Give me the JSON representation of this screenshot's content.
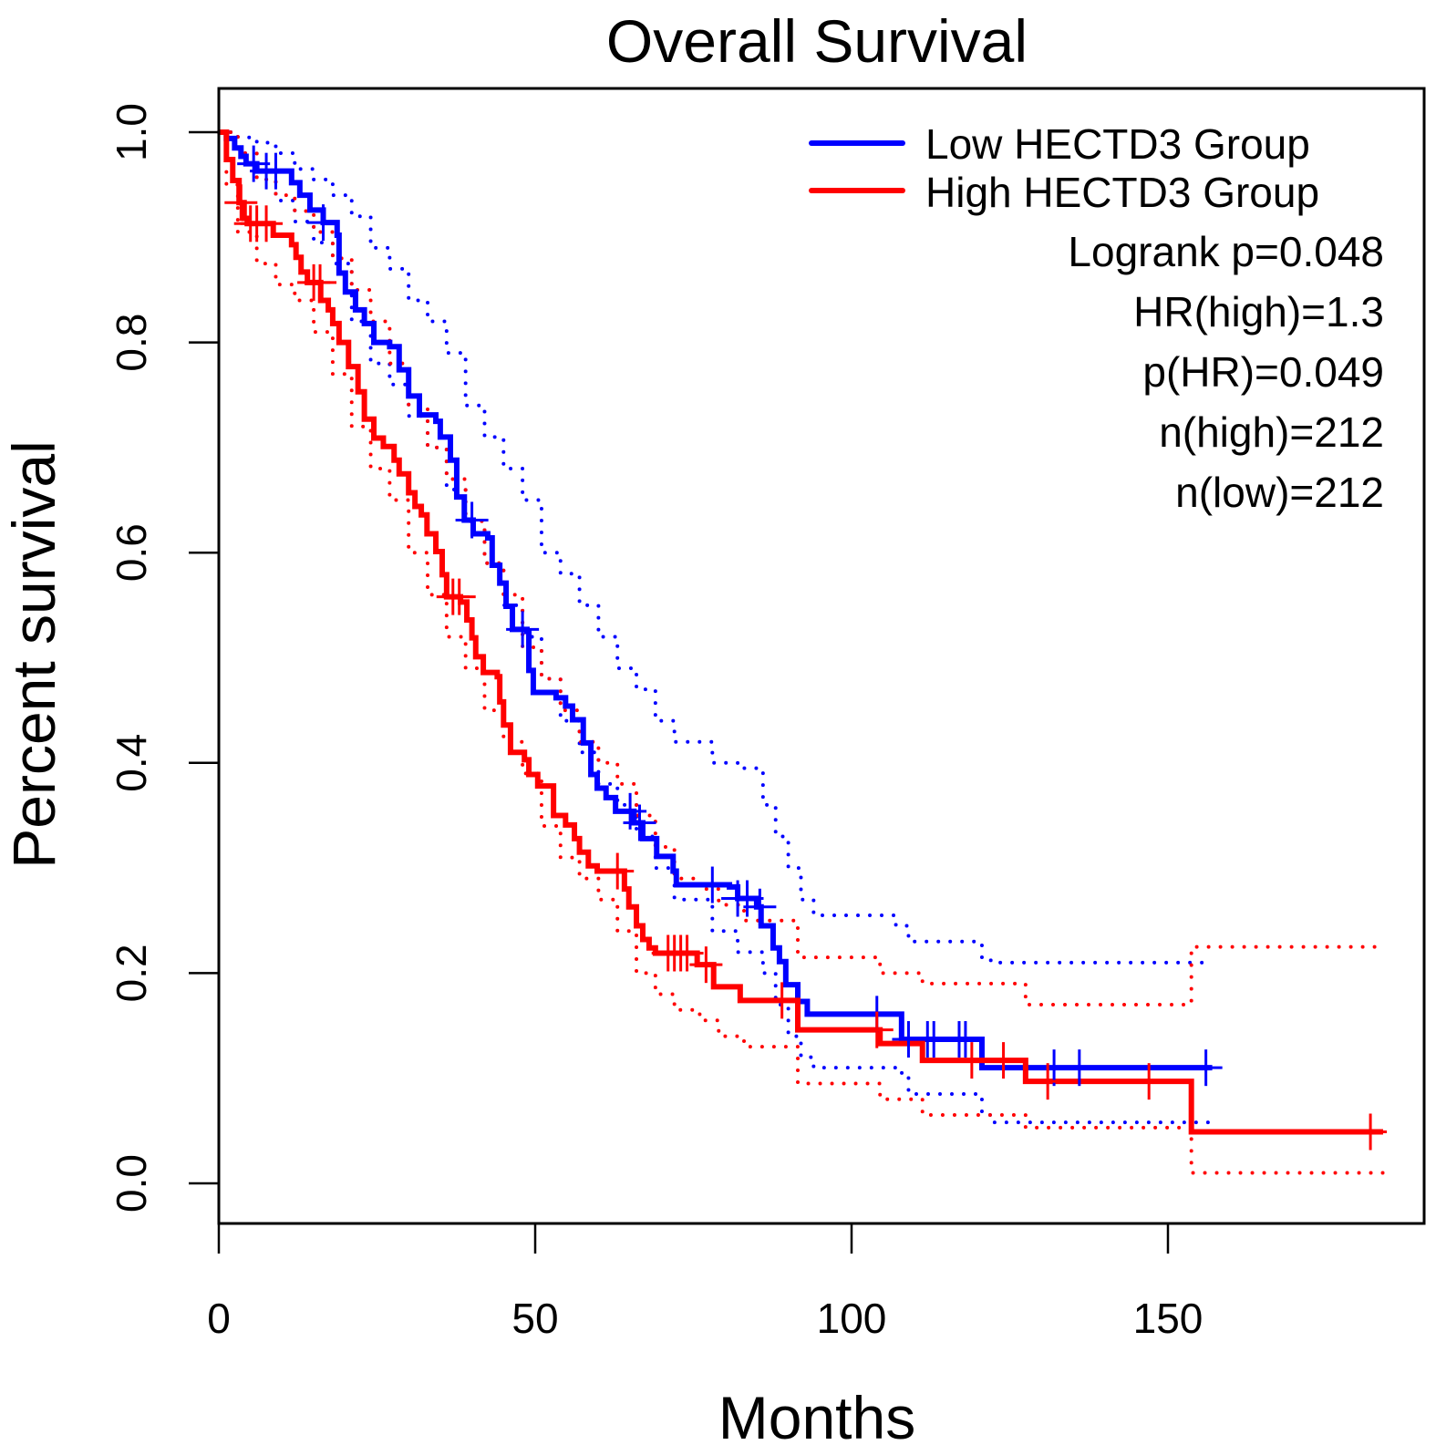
{
  "chart_data": {
    "type": "line",
    "subtype": "kaplan-meier",
    "title": "Overall Survival",
    "xlabel": "Months",
    "ylabel": "Percent survival",
    "xlim": [
      0,
      185
    ],
    "ylim": [
      0,
      1.0
    ],
    "x_ticks": [
      0,
      50,
      100,
      150
    ],
    "x_tick_labels": [
      "0",
      "50",
      "100",
      "150"
    ],
    "y_ticks": [
      0.0,
      0.2,
      0.4,
      0.6,
      0.8,
      1.0
    ],
    "y_tick_labels": [
      "0.0",
      "0.2",
      "0.4",
      "0.6",
      "0.8",
      "1.0"
    ],
    "grid": false,
    "legend_position": "top-right",
    "series": [
      {
        "name": "Low HECTD3 Group",
        "color": "#0000ff",
        "steps": [
          [
            0,
            1.0
          ],
          [
            1.2,
            0.994
          ],
          [
            2.5,
            0.985
          ],
          [
            3.5,
            0.977
          ],
          [
            4.3,
            0.97
          ],
          [
            6,
            0.963
          ],
          [
            11.5,
            0.952
          ],
          [
            12.8,
            0.94
          ],
          [
            14.4,
            0.926
          ],
          [
            16.5,
            0.914
          ],
          [
            18.7,
            0.902
          ],
          [
            19.0,
            0.866
          ],
          [
            20.0,
            0.848
          ],
          [
            21.6,
            0.831
          ],
          [
            23.0,
            0.818
          ],
          [
            24.5,
            0.8
          ],
          [
            27.0,
            0.796
          ],
          [
            28.5,
            0.774
          ],
          [
            30.0,
            0.749
          ],
          [
            31.7,
            0.731
          ],
          [
            34.3,
            0.725
          ],
          [
            35.0,
            0.71
          ],
          [
            36.6,
            0.688
          ],
          [
            37.6,
            0.653
          ],
          [
            38.8,
            0.631
          ],
          [
            40.2,
            0.618
          ],
          [
            42.5,
            0.614
          ],
          [
            43.2,
            0.588
          ],
          [
            44.4,
            0.571
          ],
          [
            45.4,
            0.549
          ],
          [
            46.4,
            0.527
          ],
          [
            48.7,
            0.525
          ],
          [
            49.0,
            0.488
          ],
          [
            49.7,
            0.467
          ],
          [
            53.3,
            0.462
          ],
          [
            54.8,
            0.454
          ],
          [
            55.9,
            0.441
          ],
          [
            57.6,
            0.419
          ],
          [
            58.8,
            0.389
          ],
          [
            59.8,
            0.376
          ],
          [
            61.2,
            0.367
          ],
          [
            62.7,
            0.354
          ],
          [
            65.6,
            0.343
          ],
          [
            67.0,
            0.328
          ],
          [
            69.2,
            0.311
          ],
          [
            71.8,
            0.297
          ],
          [
            72.3,
            0.284
          ],
          [
            80.7,
            0.282
          ],
          [
            82.0,
            0.271
          ],
          [
            85.0,
            0.263
          ],
          [
            85.7,
            0.245
          ],
          [
            87.6,
            0.224
          ],
          [
            88.6,
            0.211
          ],
          [
            89.6,
            0.189
          ],
          [
            91.5,
            0.173
          ],
          [
            93.0,
            0.161
          ],
          [
            107.9,
            0.137
          ],
          [
            120.6,
            0.11
          ]
        ],
        "end_month": 157,
        "censor_months": [
          5.5,
          7.5,
          9,
          16.5,
          40,
          48,
          65,
          66.5,
          78,
          82,
          83.5,
          85.5,
          104,
          109,
          112,
          113,
          117,
          118,
          132,
          136,
          156
        ],
        "ci_upper": [
          [
            0,
            1.0
          ],
          [
            3,
            0.995
          ],
          [
            6,
            0.99
          ],
          [
            9,
            0.98
          ],
          [
            12,
            0.965
          ],
          [
            15,
            0.955
          ],
          [
            18,
            0.94
          ],
          [
            21,
            0.92
          ],
          [
            24,
            0.89
          ],
          [
            27,
            0.87
          ],
          [
            30,
            0.84
          ],
          [
            33,
            0.82
          ],
          [
            36,
            0.79
          ],
          [
            39,
            0.74
          ],
          [
            42,
            0.71
          ],
          [
            45,
            0.68
          ],
          [
            48,
            0.65
          ],
          [
            51,
            0.6
          ],
          [
            54,
            0.58
          ],
          [
            57,
            0.55
          ],
          [
            60,
            0.52
          ],
          [
            63,
            0.49
          ],
          [
            66,
            0.47
          ],
          [
            69,
            0.44
          ],
          [
            72,
            0.42
          ],
          [
            78,
            0.4
          ],
          [
            82,
            0.395
          ],
          [
            86,
            0.36
          ],
          [
            88,
            0.33
          ],
          [
            90,
            0.3
          ],
          [
            92,
            0.27
          ],
          [
            94,
            0.255
          ],
          [
            107,
            0.245
          ],
          [
            109,
            0.23
          ],
          [
            120.6,
            0.215
          ],
          [
            122,
            0.21
          ],
          [
            157,
            0.21
          ]
        ],
        "ci_lower": [
          [
            0,
            1.0
          ],
          [
            3,
            0.98
          ],
          [
            6,
            0.955
          ],
          [
            9,
            0.935
          ],
          [
            12,
            0.915
          ],
          [
            15,
            0.895
          ],
          [
            18,
            0.875
          ],
          [
            21,
            0.82
          ],
          [
            24,
            0.78
          ],
          [
            27,
            0.76
          ],
          [
            30,
            0.73
          ],
          [
            33,
            0.7
          ],
          [
            36,
            0.66
          ],
          [
            39,
            0.63
          ],
          [
            42,
            0.59
          ],
          [
            45,
            0.55
          ],
          [
            48,
            0.52
          ],
          [
            51,
            0.48
          ],
          [
            54,
            0.44
          ],
          [
            57,
            0.41
          ],
          [
            60,
            0.38
          ],
          [
            63,
            0.36
          ],
          [
            66,
            0.33
          ],
          [
            69,
            0.3
          ],
          [
            72,
            0.27
          ],
          [
            78,
            0.24
          ],
          [
            82,
            0.22
          ],
          [
            86,
            0.2
          ],
          [
            88,
            0.17
          ],
          [
            90,
            0.14
          ],
          [
            92,
            0.12
          ],
          [
            94,
            0.11
          ],
          [
            107,
            0.105
          ],
          [
            109,
            0.085
          ],
          [
            120.6,
            0.065
          ],
          [
            122,
            0.058
          ],
          [
            157,
            0.058
          ]
        ]
      },
      {
        "name": "High HECTD3 Group",
        "color": "#ff0000",
        "steps": [
          [
            0,
            1.0
          ],
          [
            0.5,
            1.0
          ],
          [
            1.2,
            0.974
          ],
          [
            2.2,
            0.954
          ],
          [
            3.2,
            0.933
          ],
          [
            4.0,
            0.918
          ],
          [
            4.5,
            0.913
          ],
          [
            8.6,
            0.902
          ],
          [
            11.5,
            0.893
          ],
          [
            12.2,
            0.881
          ],
          [
            13.0,
            0.867
          ],
          [
            14.0,
            0.857
          ],
          [
            16.1,
            0.84
          ],
          [
            17.3,
            0.831
          ],
          [
            18.0,
            0.818
          ],
          [
            19.0,
            0.8
          ],
          [
            20.5,
            0.777
          ],
          [
            22.0,
            0.753
          ],
          [
            23.0,
            0.727
          ],
          [
            24.5,
            0.709
          ],
          [
            26.0,
            0.701
          ],
          [
            27.7,
            0.688
          ],
          [
            28.5,
            0.675
          ],
          [
            30.0,
            0.657
          ],
          [
            31.0,
            0.644
          ],
          [
            32.0,
            0.636
          ],
          [
            32.9,
            0.618
          ],
          [
            34.3,
            0.601
          ],
          [
            35.3,
            0.579
          ],
          [
            36.0,
            0.558
          ],
          [
            38.2,
            0.553
          ],
          [
            39.2,
            0.536
          ],
          [
            40.0,
            0.519
          ],
          [
            40.6,
            0.501
          ],
          [
            41.8,
            0.486
          ],
          [
            44.0,
            0.482
          ],
          [
            44.4,
            0.458
          ],
          [
            45.0,
            0.436
          ],
          [
            46.1,
            0.41
          ],
          [
            48.3,
            0.403
          ],
          [
            49.0,
            0.389
          ],
          [
            50.4,
            0.378
          ],
          [
            52.9,
            0.35
          ],
          [
            54.8,
            0.341
          ],
          [
            56.2,
            0.328
          ],
          [
            57.0,
            0.315
          ],
          [
            58.4,
            0.302
          ],
          [
            59.8,
            0.297
          ],
          [
            64.1,
            0.28
          ],
          [
            64.8,
            0.263
          ],
          [
            66.0,
            0.245
          ],
          [
            67.0,
            0.232
          ],
          [
            68.0,
            0.224
          ],
          [
            69.0,
            0.219
          ],
          [
            75.6,
            0.208
          ],
          [
            78.2,
            0.187
          ],
          [
            82.4,
            0.174
          ],
          [
            91.5,
            0.146
          ],
          [
            104.5,
            0.133
          ],
          [
            111.2,
            0.117
          ],
          [
            127.5,
            0.097
          ],
          [
            153.7,
            0.049
          ]
        ],
        "end_month": 184,
        "censor_months": [
          3.5,
          5,
          6,
          7.5,
          15,
          16,
          37,
          38,
          63,
          71,
          72,
          73,
          74,
          77,
          89,
          104,
          119,
          124,
          131,
          147,
          182
        ]
      }
    ]
  },
  "legend": {
    "items": [
      {
        "label": "Low HECTD3 Group",
        "color": "#0000ff"
      },
      {
        "label": "High HECTD3 Group",
        "color": "#ff0000"
      }
    ]
  },
  "stats": {
    "logrank": "Logrank p=0.048",
    "hr": "HR(high)=1.3",
    "p_hr": "p(HR)=0.049",
    "n_high": "n(high)=212",
    "n_low": "n(low)=212"
  },
  "high_ci": {
    "upper": [
      [
        0,
        1.0
      ],
      [
        3,
        0.98
      ],
      [
        6,
        0.955
      ],
      [
        9,
        0.94
      ],
      [
        12,
        0.925
      ],
      [
        15,
        0.905
      ],
      [
        18,
        0.88
      ],
      [
        21,
        0.85
      ],
      [
        24,
        0.82
      ],
      [
        27,
        0.78
      ],
      [
        30,
        0.74
      ],
      [
        33,
        0.7
      ],
      [
        36,
        0.67
      ],
      [
        39,
        0.63
      ],
      [
        42,
        0.59
      ],
      [
        45,
        0.56
      ],
      [
        48,
        0.51
      ],
      [
        51,
        0.48
      ],
      [
        54,
        0.45
      ],
      [
        57,
        0.42
      ],
      [
        60,
        0.4
      ],
      [
        63,
        0.38
      ],
      [
        66,
        0.35
      ],
      [
        69,
        0.32
      ],
      [
        72,
        0.29
      ],
      [
        76,
        0.28
      ],
      [
        79,
        0.265
      ],
      [
        83,
        0.25
      ],
      [
        91.5,
        0.215
      ],
      [
        104.5,
        0.2
      ],
      [
        111.2,
        0.19
      ],
      [
        127.5,
        0.17
      ],
      [
        153.7,
        0.225
      ],
      [
        184,
        0.225
      ]
    ],
    "lower": [
      [
        0,
        1.0
      ],
      [
        1.2,
        0.95
      ],
      [
        3,
        0.905
      ],
      [
        6,
        0.875
      ],
      [
        9,
        0.855
      ],
      [
        12,
        0.84
      ],
      [
        15,
        0.81
      ],
      [
        18,
        0.77
      ],
      [
        21,
        0.72
      ],
      [
        24,
        0.68
      ],
      [
        27,
        0.65
      ],
      [
        30,
        0.6
      ],
      [
        33,
        0.56
      ],
      [
        36,
        0.52
      ],
      [
        39,
        0.49
      ],
      [
        42,
        0.45
      ],
      [
        45,
        0.42
      ],
      [
        48,
        0.39
      ],
      [
        51,
        0.34
      ],
      [
        54,
        0.31
      ],
      [
        57,
        0.29
      ],
      [
        60,
        0.27
      ],
      [
        63,
        0.24
      ],
      [
        66,
        0.2
      ],
      [
        69,
        0.18
      ],
      [
        72,
        0.165
      ],
      [
        76,
        0.155
      ],
      [
        79,
        0.14
      ],
      [
        83,
        0.13
      ],
      [
        91.5,
        0.095
      ],
      [
        104.5,
        0.08
      ],
      [
        111.2,
        0.065
      ],
      [
        127.5,
        0.053
      ],
      [
        153.7,
        0.01
      ],
      [
        184,
        0.01
      ]
    ]
  }
}
